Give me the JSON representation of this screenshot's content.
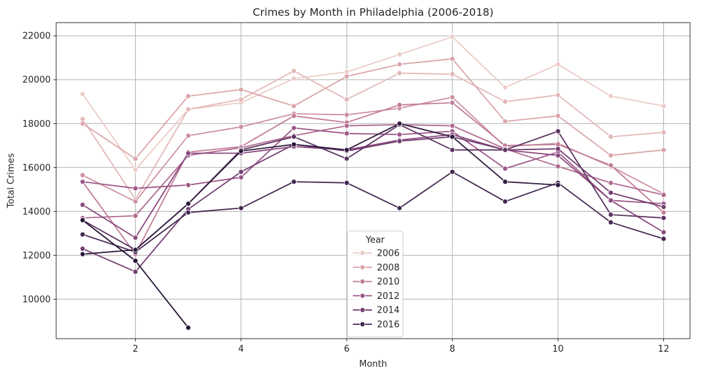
{
  "chart_data": {
    "type": "line",
    "title": "Crimes by Month in Philadelphia (2006-2018)",
    "xlabel": "Month",
    "ylabel": "Total Crimes",
    "xlim": [
      0.5,
      12.5
    ],
    "ylim": [
      8200,
      22600
    ],
    "xticks": [
      2,
      4,
      6,
      8,
      10,
      12
    ],
    "yticks": [
      10000,
      12000,
      14000,
      16000,
      18000,
      20000,
      22000
    ],
    "ytick_labels": [
      "10000",
      "12000",
      "14000",
      "16000",
      "18000",
      "20000",
      "22000"
    ],
    "grid": true,
    "legend": {
      "title": "Year",
      "placement": "bottom-center",
      "entries": [
        {
          "label": "2006",
          "color": "#ebccc7"
        },
        {
          "label": "2008",
          "color": "#dca6aa"
        },
        {
          "label": "2010",
          "color": "#c27c98"
        },
        {
          "label": "2012",
          "color": "#9d5788"
        },
        {
          "label": "2014",
          "color": "#733f71"
        },
        {
          "label": "2016",
          "color": "#432851"
        }
      ]
    },
    "series": [
      {
        "color": "#ebccc7",
        "x": [
          1,
          2,
          3,
          4,
          5,
          6,
          7,
          8,
          9,
          10,
          11,
          12
        ],
        "values": [
          19350,
          15900,
          18650,
          18950,
          20050,
          20350,
          21150,
          21950,
          19650,
          20700,
          19250,
          18800
        ]
      },
      {
        "color": "#e3b8b8",
        "x": [
          1,
          2,
          3,
          4,
          5,
          6,
          7,
          8,
          9,
          10,
          11,
          12
        ],
        "values": [
          18200,
          14550,
          18650,
          19100,
          20400,
          19100,
          20300,
          20250,
          19000,
          19300,
          17400,
          17600
        ]
      },
      {
        "color": "#dca6aa",
        "x": [
          1,
          2,
          3,
          4,
          5,
          6,
          7,
          8,
          9,
          10,
          11,
          12
        ],
        "values": [
          18000,
          16400,
          19250,
          19550,
          18800,
          20150,
          20700,
          20950,
          18100,
          18350,
          16550,
          16800
        ]
      },
      {
        "color": "#cf91a1",
        "x": [
          1,
          2,
          3,
          4,
          5,
          6,
          7,
          8,
          9,
          10,
          11,
          12
        ],
        "values": [
          15650,
          14450,
          17450,
          17850,
          18450,
          18400,
          18700,
          19200,
          16950,
          17100,
          16050,
          14800
        ]
      },
      {
        "color": "#c27c98",
        "x": [
          1,
          2,
          3,
          4,
          5,
          6,
          7,
          8,
          9,
          10,
          11,
          12
        ],
        "values": [
          15350,
          12050,
          16700,
          16950,
          18350,
          18050,
          18850,
          18950,
          17000,
          17050,
          16100,
          13950
        ]
      },
      {
        "color": "#b06a90",
        "x": [
          1,
          2,
          3,
          4,
          5,
          6,
          7,
          8,
          9,
          10,
          11,
          12
        ],
        "values": [
          13700,
          13800,
          16550,
          16900,
          17450,
          17900,
          17950,
          17900,
          16850,
          16050,
          15300,
          14750
        ]
      },
      {
        "color": "#9d5788",
        "x": [
          1,
          2,
          3,
          4,
          5,
          6,
          7,
          8,
          9,
          10,
          11,
          12
        ],
        "values": [
          15350,
          15050,
          15200,
          15550,
          17800,
          17550,
          17500,
          17650,
          15950,
          16700,
          14500,
          14350
        ]
      },
      {
        "color": "#8a4a7e",
        "x": [
          1,
          2,
          3,
          4,
          5,
          6,
          7,
          8,
          9,
          10,
          11,
          12
        ],
        "values": [
          14300,
          12800,
          16650,
          16650,
          16950,
          16800,
          17250,
          17500,
          16800,
          16550,
          14500,
          13050
        ]
      },
      {
        "color": "#733f71",
        "x": [
          1,
          2,
          3,
          4,
          5,
          6,
          7,
          8,
          9,
          10,
          11,
          12
        ],
        "values": [
          12300,
          11250,
          14100,
          15800,
          17050,
          16750,
          17200,
          17400,
          16800,
          16850,
          14850,
          14200
        ]
      },
      {
        "color": "#5c3463",
        "x": [
          1,
          2,
          3,
          4,
          5,
          6,
          7,
          8,
          9,
          10,
          11,
          12
        ],
        "values": [
          13600,
          12250,
          14350,
          16800,
          17400,
          16400,
          17950,
          16800,
          16800,
          17650,
          13850,
          13700
        ]
      },
      {
        "color": "#432851",
        "x": [
          1,
          2,
          3,
          4,
          5,
          6,
          7,
          8,
          9,
          10,
          11,
          12
        ],
        "values": [
          12950,
          12150,
          13950,
          14150,
          15350,
          15300,
          14150,
          15800,
          14450,
          15300,
          13500,
          12750
        ]
      },
      {
        "color": "#2f1b3e",
        "x": [
          1,
          2,
          3,
          4,
          5,
          6,
          7,
          8,
          9,
          10,
          11,
          12
        ],
        "values": [
          12050,
          12250,
          14350,
          16750,
          17050,
          16800,
          18000,
          17400,
          15350,
          15200,
          null,
          null
        ]
      },
      {
        "color": "#241333",
        "x": [
          1,
          2,
          3
        ],
        "values": [
          13600,
          11750,
          8700
        ]
      }
    ]
  }
}
